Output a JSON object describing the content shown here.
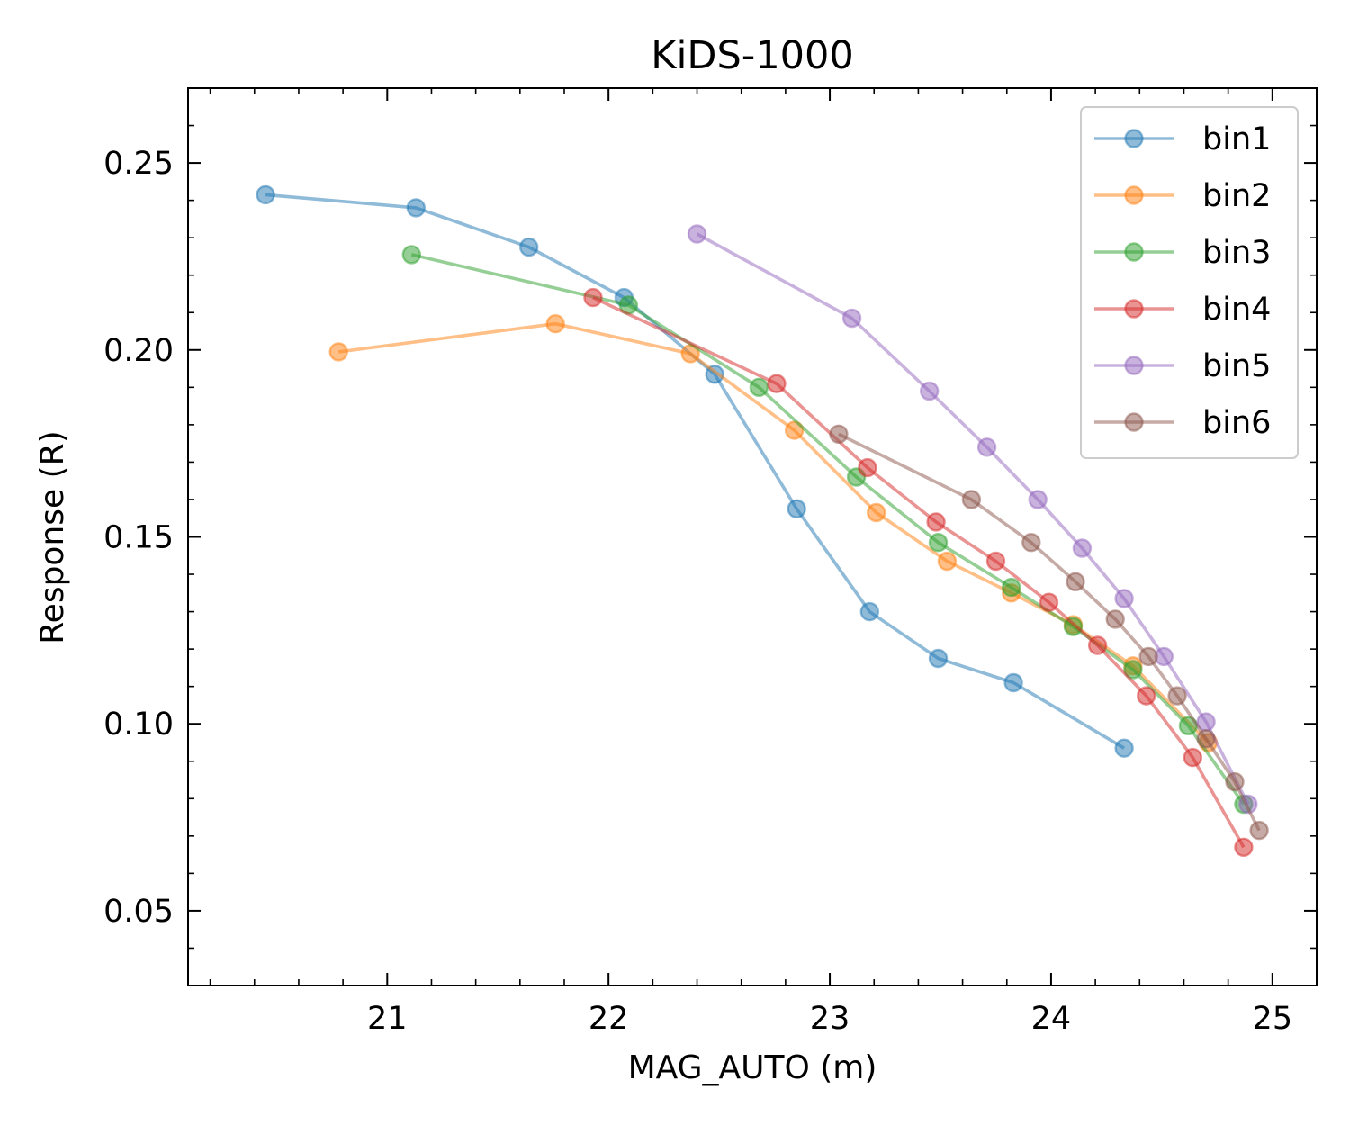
{
  "chart_data": {
    "type": "line",
    "title": "KiDS-1000",
    "xlabel": "MAG_AUTO (m)",
    "ylabel": "Response (R)",
    "xlim": [
      20.1,
      25.2
    ],
    "ylim": [
      0.03,
      0.27
    ],
    "xticks": [
      21,
      22,
      23,
      24,
      25
    ],
    "xtick_labels": [
      "21",
      "22",
      "23",
      "24",
      "25"
    ],
    "yticks": [
      0.05,
      0.1,
      0.15,
      0.2,
      0.25
    ],
    "ytick_labels": [
      "0.05",
      "0.10",
      "0.15",
      "0.20",
      "0.25"
    ],
    "grid": false,
    "legend_position": "top-right",
    "series": [
      {
        "name": "bin1",
        "color": "#1f77b4",
        "x": [
          20.45,
          21.13,
          21.64,
          22.07,
          22.48,
          22.85,
          23.18,
          23.49,
          23.83,
          24.33
        ],
        "y": [
          0.2415,
          0.238,
          0.2275,
          0.214,
          0.1935,
          0.1575,
          0.13,
          0.1175,
          0.111,
          0.0935
        ]
      },
      {
        "name": "bin2",
        "color": "#ff7f0e",
        "x": [
          20.78,
          21.76,
          22.37,
          22.84,
          23.21,
          23.53,
          23.82,
          24.1,
          24.37,
          24.71
        ],
        "y": [
          0.1995,
          0.207,
          0.199,
          0.1785,
          0.1565,
          0.1435,
          0.135,
          0.1265,
          0.1155,
          0.095
        ]
      },
      {
        "name": "bin3",
        "color": "#2ca02c",
        "x": [
          21.11,
          22.09,
          22.68,
          23.12,
          23.49,
          23.82,
          24.1,
          24.37,
          24.62,
          24.87
        ],
        "y": [
          0.2255,
          0.212,
          0.19,
          0.166,
          0.1485,
          0.1365,
          0.126,
          0.1145,
          0.0995,
          0.0785
        ]
      },
      {
        "name": "bin4",
        "color": "#d62728",
        "x": [
          21.93,
          22.76,
          23.17,
          23.48,
          23.75,
          23.99,
          24.21,
          24.43,
          24.64,
          24.87
        ],
        "y": [
          0.214,
          0.191,
          0.1685,
          0.154,
          0.1435,
          0.1325,
          0.121,
          0.1075,
          0.091,
          0.067
        ]
      },
      {
        "name": "bin5",
        "color": "#9467bd",
        "x": [
          22.4,
          23.1,
          23.45,
          23.71,
          23.94,
          24.14,
          24.33,
          24.51,
          24.7,
          24.89
        ],
        "y": [
          0.231,
          0.2085,
          0.189,
          0.174,
          0.16,
          0.147,
          0.1335,
          0.118,
          0.1005,
          0.0785
        ]
      },
      {
        "name": "bin6",
        "color": "#8c564b",
        "x": [
          23.04,
          23.64,
          23.91,
          24.11,
          24.29,
          24.44,
          24.57,
          24.7,
          24.83,
          24.94
        ],
        "y": [
          0.1775,
          0.16,
          0.1485,
          0.138,
          0.128,
          0.118,
          0.1075,
          0.096,
          0.0845,
          0.0715
        ]
      }
    ]
  }
}
